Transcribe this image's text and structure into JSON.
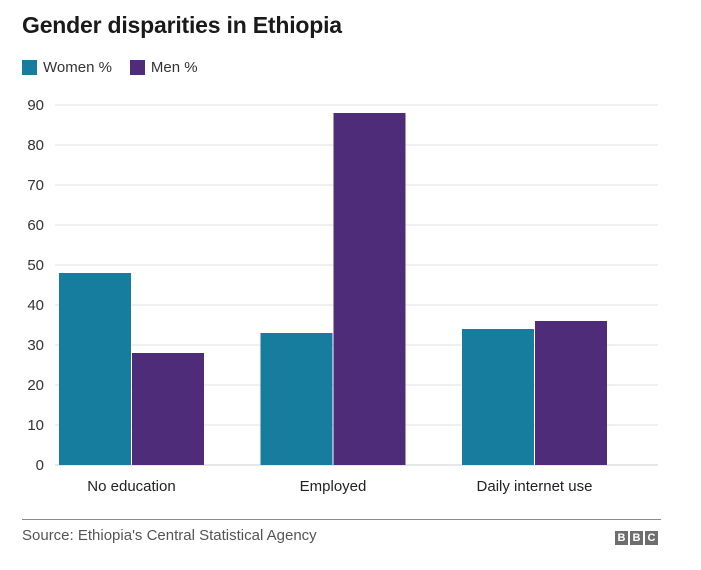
{
  "chart_data": {
    "type": "bar",
    "title": "Gender disparities in Ethiopia",
    "xlabel": "",
    "ylabel": "",
    "ylim": [
      0,
      90
    ],
    "yticks": [
      0,
      10,
      20,
      30,
      40,
      50,
      60,
      70,
      80,
      90
    ],
    "grid": true,
    "legend_position": "top-left",
    "categories": [
      "No education",
      "Employed",
      "Daily internet use"
    ],
    "series": [
      {
        "name": "Women %",
        "color": "#167d9e",
        "values": [
          48,
          33,
          34
        ]
      },
      {
        "name": "Men %",
        "color": "#4f2c7a",
        "values": [
          28,
          88,
          36
        ]
      }
    ]
  },
  "footer": {
    "source": "Source: Ethiopia's Central Statistical Agency",
    "logo_letters": [
      "B",
      "B",
      "C"
    ]
  }
}
